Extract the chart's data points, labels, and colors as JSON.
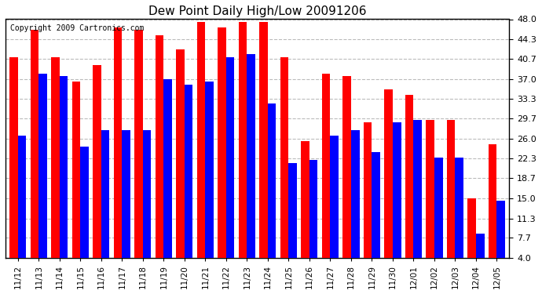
{
  "title": "Dew Point Daily High/Low 20091206",
  "copyright": "Copyright 2009 Cartronics.com",
  "categories": [
    "11/12",
    "11/13",
    "11/14",
    "11/15",
    "11/16",
    "11/17",
    "11/18",
    "11/19",
    "11/20",
    "11/21",
    "11/22",
    "11/23",
    "11/24",
    "11/25",
    "11/26",
    "11/27",
    "11/28",
    "11/29",
    "11/30",
    "12/01",
    "12/02",
    "12/03",
    "12/04",
    "12/05"
  ],
  "highs": [
    41.0,
    46.0,
    41.0,
    36.5,
    39.5,
    46.5,
    46.0,
    45.0,
    42.5,
    47.5,
    46.5,
    47.5,
    47.5,
    41.0,
    25.5,
    38.0,
    37.5,
    29.0,
    35.0,
    34.0,
    29.5,
    29.5,
    15.0,
    25.0
  ],
  "lows": [
    26.5,
    38.0,
    37.5,
    24.5,
    27.5,
    27.5,
    27.5,
    37.0,
    36.0,
    36.5,
    41.0,
    41.5,
    32.5,
    21.5,
    22.0,
    26.5,
    27.5,
    23.5,
    29.0,
    29.5,
    22.5,
    22.5,
    8.5,
    14.5
  ],
  "high_color": "#ff0000",
  "low_color": "#0000ff",
  "bg_color": "#ffffff",
  "plot_bg_color": "#ffffff",
  "grid_color": "#bbbbbb",
  "yticks": [
    4.0,
    7.7,
    11.3,
    15.0,
    18.7,
    22.3,
    26.0,
    29.7,
    33.3,
    37.0,
    40.7,
    44.3,
    48.0
  ],
  "ymin": 4.0,
  "ymax": 48.0,
  "bar_width": 0.4,
  "bar_bottom": 4.0
}
